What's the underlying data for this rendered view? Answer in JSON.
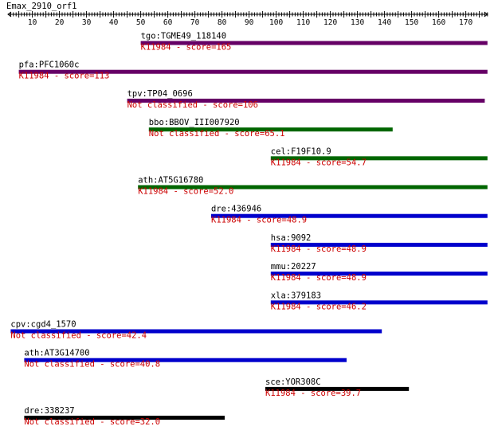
{
  "query_name": "Emax_2910_orf1",
  "axis": {
    "min": 1,
    "max": 178,
    "labels": [
      10,
      20,
      30,
      40,
      50,
      60,
      70,
      80,
      90,
      100,
      110,
      120,
      130,
      140,
      150,
      160,
      170
    ]
  },
  "colors": {
    "purple": "#660066",
    "green": "#006600",
    "blue": "#0000cc",
    "black": "#000000",
    "score_text": "#cc0000"
  },
  "hits": [
    {
      "gene": "tgo:TGME49_118140",
      "classification": "K11984 - score=165",
      "start": 50,
      "end": 178,
      "color": "purple"
    },
    {
      "gene": "pfa:PFC1060c",
      "classification": "K11984 - score=113",
      "start": 5,
      "end": 178,
      "color": "purple"
    },
    {
      "gene": "tpv:TP04_0696",
      "classification": "Not classified - score=106",
      "start": 45,
      "end": 177,
      "color": "purple"
    },
    {
      "gene": "bbo:BBOV_III007920",
      "classification": "Not classified - score=65.1",
      "start": 53,
      "end": 143,
      "color": "green"
    },
    {
      "gene": "cel:F19F10.9",
      "classification": "K11984 - score=54.7",
      "start": 98,
      "end": 178,
      "color": "green"
    },
    {
      "gene": "ath:AT5G16780",
      "classification": "K11984 - score=52.0",
      "start": 49,
      "end": 178,
      "color": "green"
    },
    {
      "gene": "dre:436946",
      "classification": "K11984 - score=48.9",
      "start": 76,
      "end": 178,
      "color": "blue"
    },
    {
      "gene": "hsa:9092",
      "classification": "K11984 - score=48.9",
      "start": 98,
      "end": 178,
      "color": "blue"
    },
    {
      "gene": "mmu:20227",
      "classification": "K11984 - score=48.9",
      "start": 98,
      "end": 178,
      "color": "blue"
    },
    {
      "gene": "xla:379183",
      "classification": "K11984 - score=46.2",
      "start": 98,
      "end": 178,
      "color": "blue"
    },
    {
      "gene": "cpv:cgd4_1570",
      "classification": "Not classified - score=42.4",
      "start": 2,
      "end": 139,
      "color": "blue"
    },
    {
      "gene": "ath:AT3G14700",
      "classification": "Not classified - score=40.8",
      "start": 7,
      "end": 126,
      "color": "blue"
    },
    {
      "gene": "sce:YOR308C",
      "classification": "K11984 - score=39.7",
      "start": 96,
      "end": 149,
      "color": "black"
    },
    {
      "gene": "dre:338237",
      "classification": "Not classified - score=32.0",
      "start": 7,
      "end": 81,
      "color": "black"
    }
  ]
}
